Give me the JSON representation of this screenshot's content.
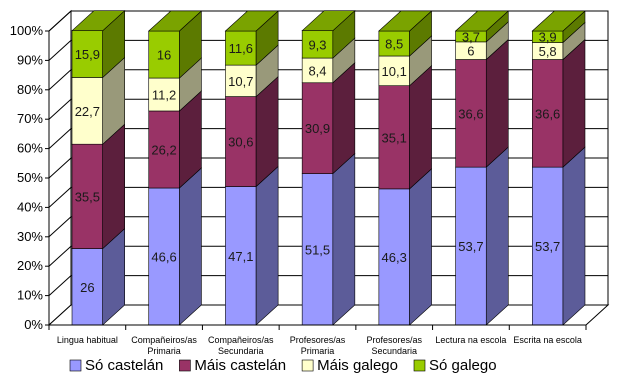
{
  "chart_data": {
    "type": "bar",
    "stacked": true,
    "three_d": true,
    "title": "",
    "xlabel": "",
    "ylabel": "",
    "ylim": [
      0,
      100
    ],
    "y_ticks": [
      "0%",
      "10%",
      "20%",
      "30%",
      "40%",
      "50%",
      "60%",
      "70%",
      "80%",
      "90%",
      "100%"
    ],
    "grid": true,
    "legend_position": "bottom",
    "categories": [
      [
        "Lingua habitual"
      ],
      [
        "Compañeiros/as",
        "Primaria"
      ],
      [
        "Compañeiros/as",
        "Secundaria"
      ],
      [
        "Profesores/as",
        "Primaria"
      ],
      [
        "Profesores/as",
        "Secundaria"
      ],
      [
        "Lectura na escola"
      ],
      [
        "Escrita na escola"
      ]
    ],
    "series": [
      {
        "name": "Só castelán",
        "color": "#9999ff",
        "values": [
          26,
          46.6,
          47.1,
          51.5,
          46.3,
          53.7,
          53.7
        ],
        "labels": [
          "26",
          "46,6",
          "47,1",
          "51,5",
          "46,3",
          "53,7",
          "53,7"
        ]
      },
      {
        "name": "Máis castelán",
        "color": "#993366",
        "values": [
          35.5,
          26.2,
          30.6,
          30.9,
          35.1,
          36.6,
          36.6
        ],
        "labels": [
          "35,5",
          "26,2",
          "30,6",
          "30,9",
          "35,1",
          "36,6",
          "36,6"
        ]
      },
      {
        "name": "Máis galego",
        "color": "#ffffcc",
        "values": [
          22.7,
          11.2,
          10.7,
          8.4,
          10.1,
          6,
          5.8
        ],
        "labels": [
          "22,7",
          "11,2",
          "10,7",
          "8,4",
          "10,1",
          "6",
          "5,8"
        ]
      },
      {
        "name": "Só galego",
        "color": "#99cc00",
        "values": [
          15.9,
          16,
          11.6,
          9.3,
          8.5,
          3.7,
          3.9
        ],
        "labels": [
          "15,9",
          "16",
          "11,6",
          "9,3",
          "8,5",
          "3,7",
          "3,9"
        ]
      }
    ]
  }
}
